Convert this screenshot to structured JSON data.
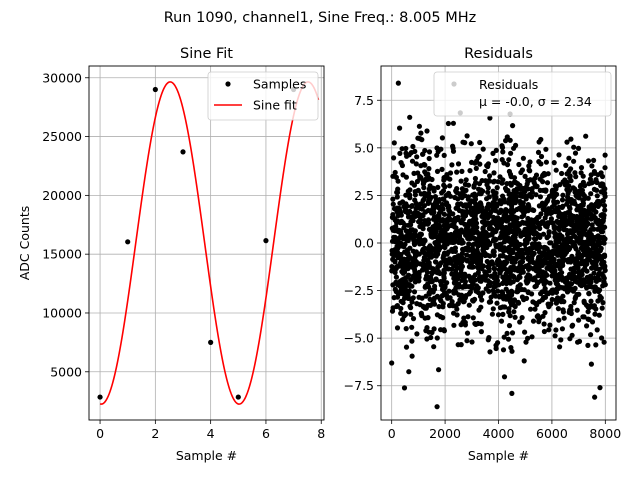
{
  "suptitle": "Run 1090, channel1, Sine Freq.: 8.005 MHz",
  "chart_data": [
    {
      "type": "line",
      "title": "Sine Fit",
      "xlabel": "Sample #",
      "ylabel": "ADC Counts",
      "xlim": [
        -0.4,
        8.1
      ],
      "ylim": [
        900,
        31000
      ],
      "xticks": [
        0,
        2,
        4,
        6,
        8
      ],
      "yticks": [
        5000,
        10000,
        15000,
        20000,
        25000,
        30000
      ],
      "grid": true,
      "legend_position": "top-right",
      "series": [
        {
          "name": "Samples",
          "kind": "scatter",
          "color": "#000000",
          "x": [
            0,
            1,
            2,
            3,
            4,
            5,
            6,
            7
          ],
          "y": [
            2850,
            16050,
            29000,
            23700,
            7500,
            2850,
            16150,
            29000
          ]
        },
        {
          "name": "Sine fit",
          "kind": "line",
          "color": "#ff0000",
          "fit": {
            "offset": 15950,
            "amplitude": 13700,
            "period": 4.985,
            "phase": -1.627
          },
          "x_range": [
            0,
            7.9
          ]
        }
      ]
    },
    {
      "type": "scatter",
      "title": "Residuals",
      "xlabel": "Sample #",
      "ylabel": "",
      "xlim": [
        -400,
        8400
      ],
      "ylim": [
        -9.3,
        9.3
      ],
      "xticks": [
        0,
        2000,
        4000,
        6000,
        8000
      ],
      "yticks": [
        -7.5,
        -5.0,
        -2.5,
        0.0,
        2.5,
        5.0,
        7.5
      ],
      "grid": true,
      "legend_position": "top-right",
      "series": [
        {
          "name": "Residuals",
          "color": "#000000",
          "n_points": 8000,
          "mean": -0.0,
          "sigma": 2.34,
          "x_range": [
            0,
            7999
          ],
          "extremes": [
            {
              "x": 250,
              "y": 8.4
            },
            {
              "x": 1700,
              "y": -8.6
            },
            {
              "x": 7600,
              "y": -8.1
            },
            {
              "x": 7800,
              "y": -7.6
            },
            {
              "x": 4500,
              "y": -7.9
            }
          ]
        }
      ],
      "legend_stats": "μ = -0.0, σ = 2.34"
    }
  ]
}
